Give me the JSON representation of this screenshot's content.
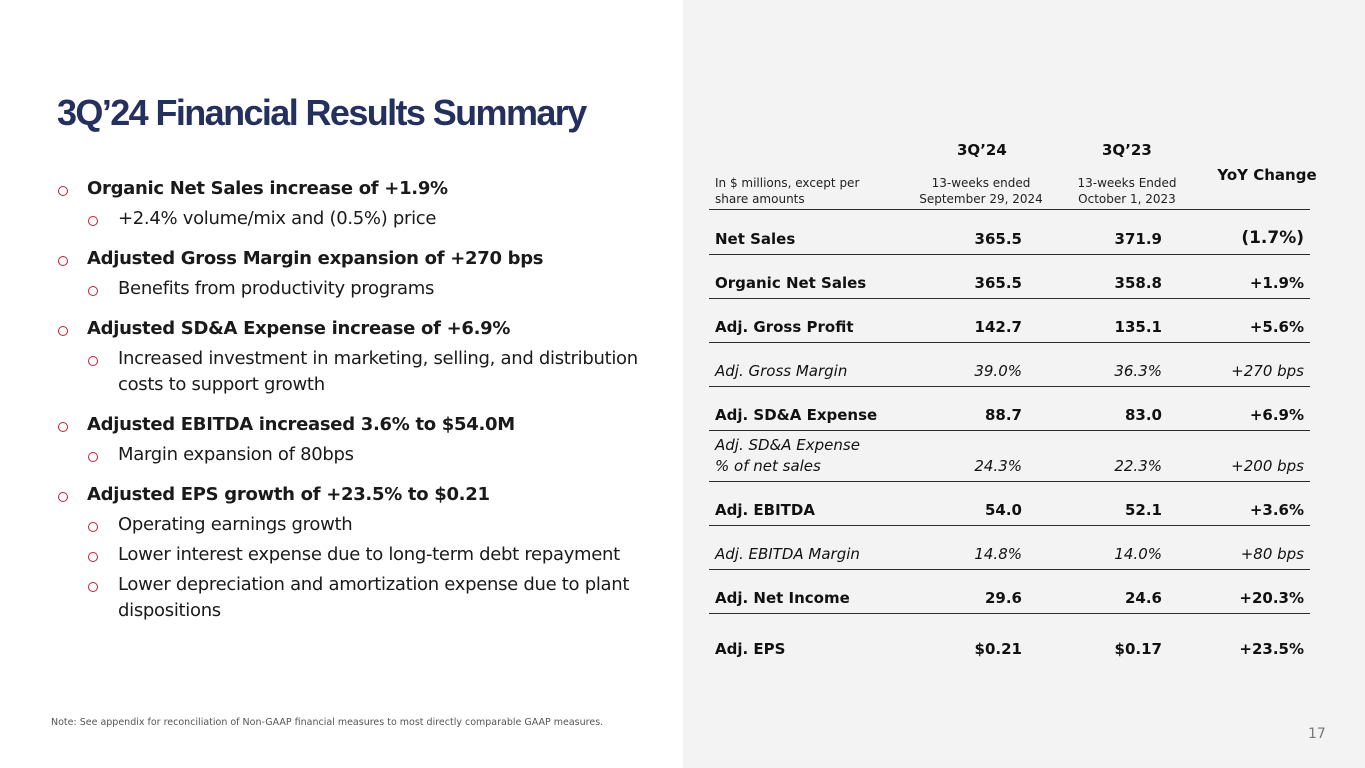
{
  "title": "3Q’24 Financial Results Summary",
  "bullets": [
    {
      "text": "Organic Net Sales increase of +1.9%",
      "subs": [
        "+2.4% volume/mix and (0.5%) price"
      ]
    },
    {
      "text": "Adjusted Gross Margin expansion of +270 bps",
      "subs": [
        "Benefits from productivity programs"
      ]
    },
    {
      "text": "Adjusted SD&A Expense increase of +6.9%",
      "subs": [
        "Increased investment in marketing, selling, and distribution costs to support growth"
      ]
    },
    {
      "text": "Adjusted EBITDA increased 3.6% to $54.0M",
      "subs": [
        "Margin expansion of 80bps"
      ]
    },
    {
      "text": "Adjusted EPS growth of +23.5% to $0.21",
      "subs": [
        "Operating earnings growth",
        "Lower interest expense due to long-term debt repayment",
        "Lower depreciation and amortization expense due to plant dispositions"
      ]
    }
  ],
  "table": {
    "period_1": "3Q’24",
    "period_2": "3Q’23",
    "desc": "In $ millions, except per share amounts",
    "period_1_sub": "13-weeks ended September 29, 2024",
    "period_2_sub": "13-weeks Ended October 1, 2023",
    "yoy": "YoY Change",
    "rows": [
      {
        "label": "Net Sales",
        "v1": "365.5",
        "v2": "371.9",
        "v3": "(1.7%)"
      },
      {
        "label": "Organic Net Sales",
        "v1": "365.5",
        "v2": "358.8",
        "v3": "+1.9%"
      },
      {
        "label": "Adj. Gross Profit",
        "v1": "142.7",
        "v2": "135.1",
        "v3": "+5.6%"
      },
      {
        "label": "Adj. Gross Margin",
        "v1": "39.0%",
        "v2": "36.3%",
        "v3": "+270 bps"
      },
      {
        "label": "Adj. SD&A Expense",
        "v1": "88.7",
        "v2": "83.0",
        "v3": "+6.9%"
      },
      {
        "label": "Adj. SD&A Expense",
        "label2": "% of net sales",
        "v1": "24.3%",
        "v2": "22.3%",
        "v3": "+200 bps"
      },
      {
        "label": "Adj. EBITDA",
        "v1": "54.0",
        "v2": "52.1",
        "v3": "+3.6%"
      },
      {
        "label": "Adj. EBITDA Margin",
        "v1": "14.8%",
        "v2": "14.0%",
        "v3": "+80 bps"
      },
      {
        "label": "Adj. Net Income",
        "v1": "29.6",
        "v2": "24.6",
        "v3": "+20.3%"
      },
      {
        "label": "Adj. EPS",
        "v1": "$0.21",
        "v2": "$0.17",
        "v3": "+23.5%"
      }
    ]
  },
  "note": "Note: See appendix for reconciliation of Non-GAAP financial measures to most directly comparable GAAP measures.",
  "page_number": "17",
  "colors": {
    "title": "#24305e",
    "bullet_marker": "#c8202e",
    "panel_bg": "#f3f3f3"
  }
}
